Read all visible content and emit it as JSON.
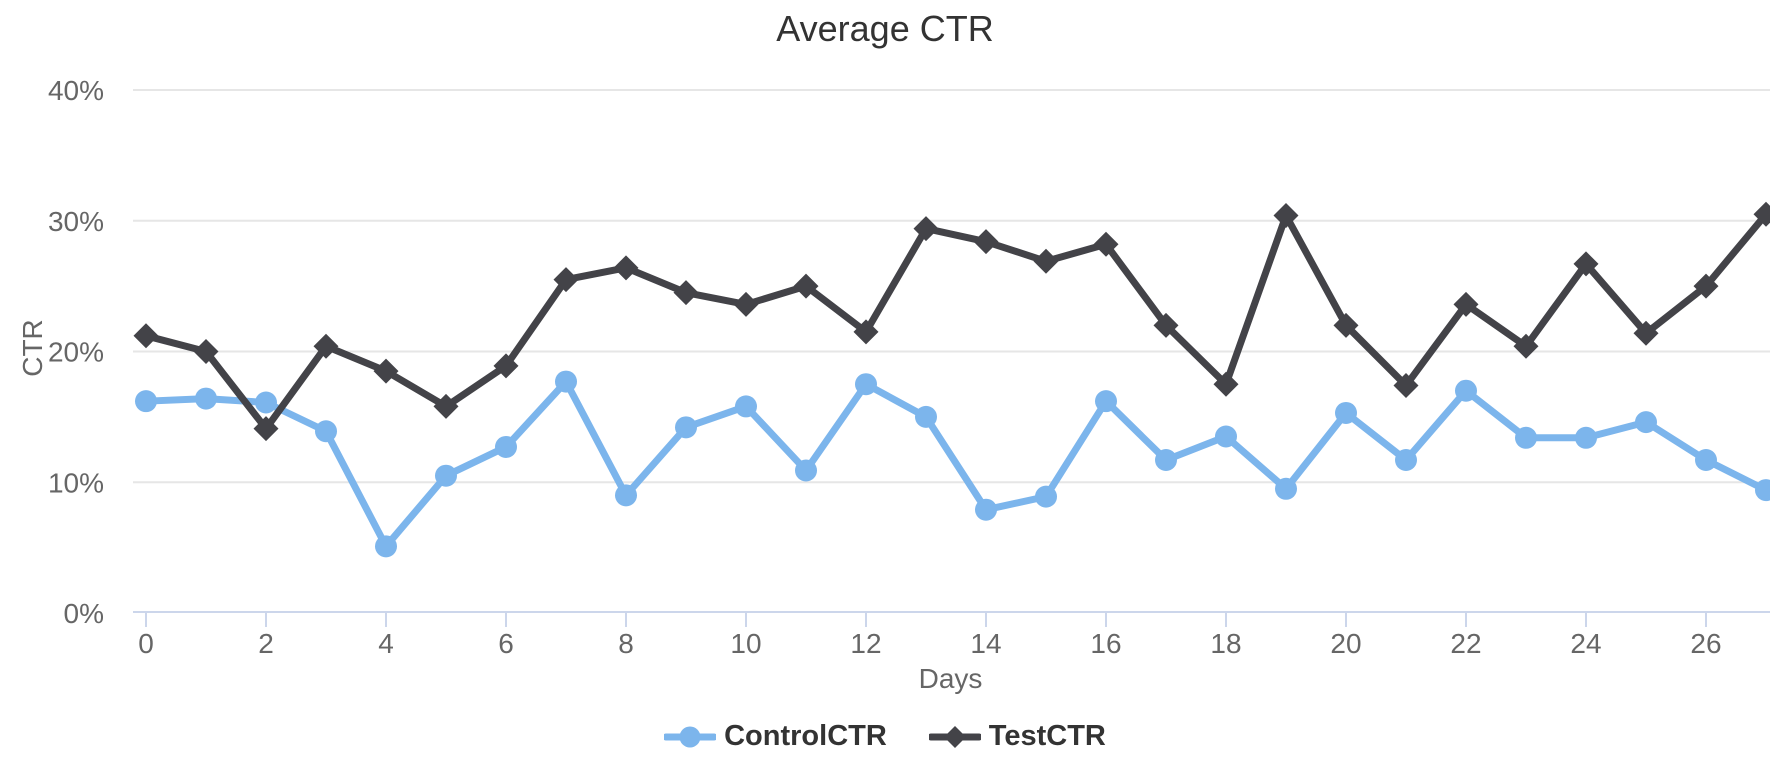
{
  "chart_data": {
    "type": "line",
    "title": "Average CTR",
    "xlabel": "Days",
    "ylabel": "CTR",
    "x": [
      0,
      1,
      2,
      3,
      4,
      5,
      6,
      7,
      8,
      9,
      10,
      11,
      12,
      13,
      14,
      15,
      16,
      17,
      18,
      19,
      20,
      21,
      22,
      23,
      24,
      25,
      26,
      27
    ],
    "x_ticks": [
      0,
      2,
      4,
      6,
      8,
      10,
      12,
      14,
      16,
      18,
      20,
      22,
      24,
      26
    ],
    "y_ticks": [
      0,
      10,
      20,
      30,
      40
    ],
    "y_tick_suffix": "%",
    "ylim": [
      0,
      40
    ],
    "grid": true,
    "legend_position": "bottom-center",
    "series": [
      {
        "name": "ControlCTR",
        "color": "#7cb5ec",
        "marker": "circle",
        "values": [
          16.2,
          16.4,
          16.1,
          13.9,
          5.1,
          10.5,
          12.7,
          17.7,
          9.0,
          14.2,
          15.8,
          10.9,
          17.5,
          15.0,
          7.9,
          8.9,
          16.2,
          11.7,
          13.5,
          9.5,
          15.3,
          11.7,
          17.0,
          13.4,
          13.4,
          14.6,
          11.7,
          9.4
        ]
      },
      {
        "name": "TestCTR",
        "color": "#434348",
        "marker": "diamond",
        "values": [
          21.2,
          20.0,
          14.1,
          20.4,
          18.5,
          15.8,
          18.9,
          25.5,
          26.4,
          24.5,
          23.6,
          25.0,
          21.5,
          29.4,
          28.4,
          26.9,
          28.2,
          22.0,
          17.5,
          30.4,
          22.0,
          17.4,
          23.6,
          20.4,
          26.7,
          21.4,
          25.0,
          30.5
        ]
      }
    ],
    "colors": {
      "title": "#333333",
      "axis_label": "#666666",
      "axis_title": "#666666",
      "gridline": "#e6e6e6",
      "axis_line": "#ccd6eb",
      "legend_text": "#333333",
      "background": "#ffffff"
    }
  }
}
